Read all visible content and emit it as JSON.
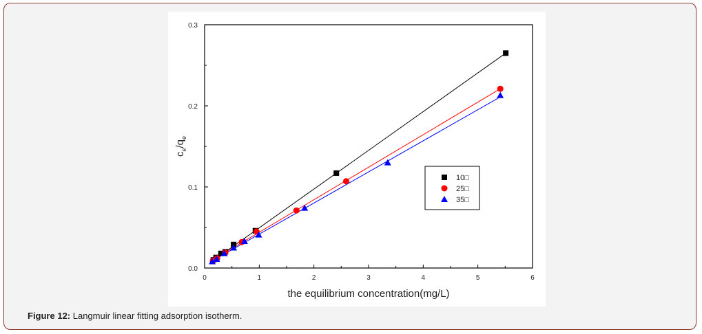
{
  "figure": {
    "caption_label": "Figure 12:",
    "caption_text": " Langmuir linear fitting adsorption isotherm.",
    "border_color": "#8b3a2e",
    "background": "#f3f3f3"
  },
  "chart_data": {
    "type": "scatter",
    "title": "",
    "xlabel": "the equilibrium concentration(mg/L)",
    "ylabel": "ce/qe",
    "ylabel_main": "c",
    "ylabel_sub1": "e",
    "ylabel_slash": "/q",
    "ylabel_sub2": "e",
    "xlim": [
      0,
      6
    ],
    "ylim": [
      0.0,
      0.3
    ],
    "xticks": [
      "0",
      "1",
      "2",
      "3",
      "4",
      "5",
      "6"
    ],
    "yticks": [
      "0.0",
      "0.1",
      "0.2",
      "0.3"
    ],
    "grid": false,
    "legend_position": "inside right, middle",
    "series": [
      {
        "name": "10□",
        "marker": "square",
        "color": "#000000",
        "x": [
          0.16,
          0.21,
          0.3,
          0.38,
          0.53,
          0.93,
          2.41,
          5.51
        ],
        "y": [
          0.01,
          0.013,
          0.018,
          0.02,
          0.029,
          0.046,
          0.117,
          0.265
        ],
        "fit": [
          [
            0.15,
            0.009
          ],
          [
            5.51,
            0.265
          ]
        ]
      },
      {
        "name": "25□",
        "marker": "circle",
        "color": "#ff0000",
        "x": [
          0.15,
          0.23,
          0.38,
          0.68,
          0.95,
          1.68,
          2.59,
          5.41
        ],
        "y": [
          0.009,
          0.012,
          0.019,
          0.032,
          0.045,
          0.071,
          0.107,
          0.221
        ],
        "fit": [
          [
            0.15,
            0.01
          ],
          [
            5.41,
            0.221
          ]
        ]
      },
      {
        "name": "35□",
        "marker": "triangle",
        "color": "#0000ff",
        "x": [
          0.14,
          0.22,
          0.36,
          0.53,
          0.73,
          0.99,
          1.83,
          3.35,
          5.41
        ],
        "y": [
          0.008,
          0.011,
          0.018,
          0.025,
          0.033,
          0.041,
          0.074,
          0.13,
          0.213
        ],
        "fit": [
          [
            0.12,
            0.008
          ],
          [
            5.41,
            0.211
          ]
        ]
      }
    ]
  }
}
